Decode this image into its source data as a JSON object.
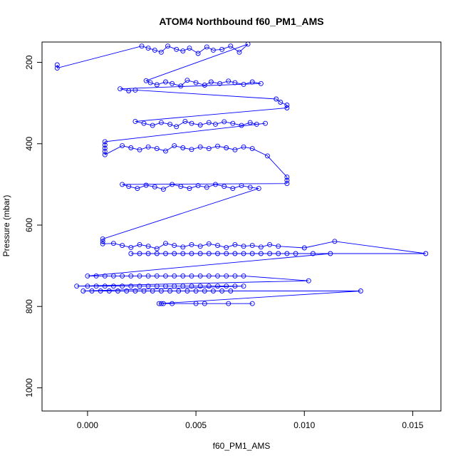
{
  "chart_data": {
    "type": "line",
    "title": "ATOM4 Northbound f60_PM1_AMS",
    "xlabel": "f60_PM1_AMS",
    "ylabel": "Pressure (mbar)",
    "xlim": [
      -0.0021,
      0.0163
    ],
    "ylim": [
      1057,
      150
    ],
    "y_reversed": true,
    "xticks": [
      0.0,
      0.005,
      0.01,
      0.015
    ],
    "xtick_labels": [
      "0.000",
      "0.005",
      "0.010",
      "0.015"
    ],
    "yticks": [
      200,
      400,
      600,
      800,
      1000
    ],
    "ytick_labels": [
      "200",
      "400",
      "600",
      "800",
      "1000"
    ],
    "grid": false,
    "legend": "none",
    "marker": "open-circle",
    "series": [
      {
        "color": "#0000ff",
        "x": [
          -0.0014,
          -0.0014,
          0.0025,
          0.0028,
          0.0031,
          0.0034,
          0.0037,
          0.0041,
          0.0044,
          0.0047,
          0.0051,
          0.0055,
          0.0058,
          0.0062,
          0.0066,
          0.007,
          0.0074,
          0.0027,
          0.0029,
          0.0032,
          0.0036,
          0.0039,
          0.0043,
          0.0046,
          0.005,
          0.0054,
          0.0057,
          0.0061,
          0.0065,
          0.0068,
          0.0072,
          0.0076,
          0.008,
          0.0015,
          0.0019,
          0.0022,
          0.0087,
          0.0089,
          0.0092,
          0.0092,
          0.0022,
          0.0026,
          0.003,
          0.0034,
          0.0038,
          0.0041,
          0.0045,
          0.0048,
          0.0052,
          0.0056,
          0.0059,
          0.0063,
          0.0067,
          0.0071,
          0.0075,
          0.0078,
          0.0082,
          0.0008,
          0.0008,
          0.0008,
          0.0008,
          0.0008,
          0.0016,
          0.002,
          0.0024,
          0.0028,
          0.0032,
          0.0036,
          0.004,
          0.0044,
          0.0048,
          0.0052,
          0.0056,
          0.006,
          0.0064,
          0.0068,
          0.0072,
          0.0076,
          0.0083,
          0.0092,
          0.0092,
          0.0092,
          0.0016,
          0.0019,
          0.0023,
          0.0027,
          0.0031,
          0.0035,
          0.0039,
          0.0043,
          0.0047,
          0.0051,
          0.0055,
          0.0059,
          0.0063,
          0.0067,
          0.0071,
          0.0075,
          0.0079,
          0.0007,
          0.0007,
          0.0007,
          0.0012,
          0.0016,
          0.002,
          0.0024,
          0.0028,
          0.0032,
          0.0036,
          0.004,
          0.0044,
          0.0048,
          0.0052,
          0.0056,
          0.006,
          0.0064,
          0.0068,
          0.0072,
          0.0076,
          0.008,
          0.0084,
          0.0088,
          0.01,
          0.0114,
          0.0156,
          0.002,
          0.0024,
          0.0028,
          0.0032,
          0.0036,
          0.004,
          0.0044,
          0.0048,
          0.0052,
          0.0056,
          0.006,
          0.0064,
          0.0068,
          0.0072,
          0.0076,
          0.008,
          0.0084,
          0.0088,
          0.0092,
          0.0096,
          0.0104,
          0.0112,
          0.0,
          0.0004,
          0.0008,
          0.0012,
          0.0016,
          0.002,
          0.0024,
          0.0028,
          0.0032,
          0.0036,
          0.004,
          0.0044,
          0.0048,
          0.0052,
          0.0056,
          0.006,
          0.0064,
          0.0068,
          0.0072,
          0.0102,
          -0.0005,
          0.0,
          0.0004,
          0.0008,
          0.0012,
          0.0016,
          0.002,
          0.0024,
          0.0028,
          0.0032,
          0.0036,
          0.004,
          0.0044,
          0.0048,
          0.0052,
          0.0056,
          0.006,
          0.0064,
          0.0068,
          0.0072,
          -0.0002,
          0.0002,
          0.0006,
          0.001,
          0.0014,
          0.0018,
          0.0022,
          0.0026,
          0.003,
          0.0034,
          0.0038,
          0.0042,
          0.0046,
          0.005,
          0.0054,
          0.0058,
          0.0062,
          0.0066,
          0.0126,
          0.0033,
          0.0034,
          0.0035,
          0.0039,
          0.005,
          0.0054,
          0.0065,
          0.0076
        ],
        "y": [
          206,
          214,
          160,
          165,
          170,
          175,
          160,
          168,
          172,
          165,
          178,
          162,
          170,
          168,
          160,
          175,
          155,
          245,
          250,
          255,
          248,
          252,
          258,
          244,
          250,
          256,
          248,
          252,
          246,
          250,
          254,
          248,
          252,
          265,
          270,
          268,
          290,
          298,
          305,
          312,
          345,
          350,
          355,
          348,
          352,
          358,
          345,
          350,
          354,
          348,
          352,
          346,
          350,
          355,
          348,
          352,
          350,
          395,
          403,
          411,
          419,
          427,
          405,
          410,
          415,
          408,
          412,
          418,
          405,
          410,
          414,
          408,
          412,
          406,
          410,
          415,
          408,
          412,
          430,
          482,
          490,
          498,
          500,
          505,
          510,
          502,
          506,
          512,
          500,
          505,
          510,
          503,
          507,
          500,
          505,
          510,
          503,
          507,
          510,
          634,
          640,
          646,
          645,
          650,
          655,
          648,
          652,
          658,
          645,
          650,
          654,
          648,
          652,
          646,
          650,
          655,
          648,
          652,
          650,
          654,
          648,
          652,
          656,
          640,
          670,
          670,
          670,
          670,
          670,
          670,
          670,
          670,
          670,
          670,
          670,
          670,
          670,
          670,
          670,
          670,
          670,
          670,
          670,
          670,
          670,
          670,
          670,
          725,
          725,
          725,
          725,
          725,
          725,
          725,
          725,
          725,
          725,
          725,
          725,
          725,
          725,
          725,
          725,
          725,
          725,
          725,
          737,
          750,
          750,
          750,
          750,
          750,
          750,
          750,
          750,
          750,
          750,
          750,
          750,
          750,
          750,
          750,
          750,
          750,
          750,
          750,
          750,
          762,
          762,
          762,
          762,
          762,
          762,
          762,
          762,
          762,
          762,
          762,
          762,
          762,
          762,
          762,
          762,
          762,
          762,
          762,
          793,
          793,
          793,
          793,
          793,
          793,
          793,
          793
        ]
      }
    ]
  }
}
